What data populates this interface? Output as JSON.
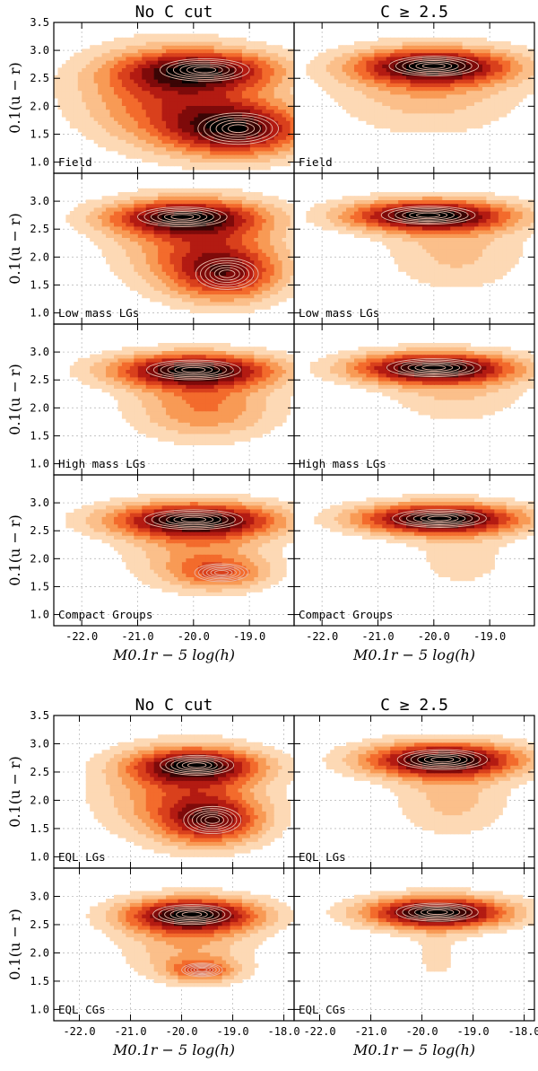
{
  "chart_data": {
    "type": "contour",
    "figure_blocks": [
      {
        "column_titles": [
          "No C cut",
          "C ≥ 2.5"
        ],
        "ylabel": "0.1(u − r)",
        "xlabel": "M0.1r − 5 log(h)",
        "xlim": [
          -22.5,
          -18.2
        ],
        "ylim": [
          0.8,
          3.5
        ],
        "xticks": [
          "-22.0",
          "-21.0",
          "-20.0",
          "-19.0"
        ],
        "yticks": [
          "1.0",
          "1.5",
          "2.0",
          "2.5",
          "3.0",
          "3.5"
        ],
        "rows": [
          {
            "label": "Field",
            "panels": [
              {
                "column": "No C cut",
                "peaks": [
                  {
                    "x": -19.2,
                    "y": 1.6,
                    "sx": 0.9,
                    "sy": 0.35,
                    "w": 1.0
                  },
                  {
                    "x": -19.8,
                    "y": 2.65,
                    "sx": 1.0,
                    "sy": 0.25,
                    "w": 0.85
                  }
                ],
                "band": {
                  "x": -20.5,
                  "y": 2.2,
                  "sx": 1.1,
                  "sy": 0.6,
                  "w": 0.6
                }
              },
              {
                "column": "C ≥ 2.5",
                "peaks": [
                  {
                    "x": -20.0,
                    "y": 2.72,
                    "sx": 1.0,
                    "sy": 0.22,
                    "w": 1.0
                  }
                ],
                "band": {
                  "x": -20.1,
                  "y": 2.3,
                  "sx": 1.2,
                  "sy": 0.55,
                  "w": 0.35
                }
              }
            ]
          },
          {
            "label": "Low mass LGs",
            "panels": [
              {
                "column": "No C cut",
                "peaks": [
                  {
                    "x": -20.2,
                    "y": 2.72,
                    "sx": 1.0,
                    "sy": 0.22,
                    "w": 1.0
                  },
                  {
                    "x": -19.4,
                    "y": 1.7,
                    "sx": 0.7,
                    "sy": 0.35,
                    "w": 0.75
                  }
                ],
                "band": {
                  "x": -19.9,
                  "y": 2.2,
                  "sx": 1.0,
                  "sy": 0.55,
                  "w": 0.6
                }
              },
              {
                "column": "C ≥ 2.5",
                "peaks": [
                  {
                    "x": -20.1,
                    "y": 2.75,
                    "sx": 1.05,
                    "sy": 0.2,
                    "w": 1.0
                  }
                ],
                "band": {
                  "x": -19.6,
                  "y": 2.1,
                  "sx": 0.9,
                  "sy": 0.5,
                  "w": 0.25
                }
              }
            ]
          },
          {
            "label": "High mass LGs",
            "panels": [
              {
                "column": "No C cut",
                "peaks": [
                  {
                    "x": -20.0,
                    "y": 2.68,
                    "sx": 1.05,
                    "sy": 0.22,
                    "w": 1.0
                  }
                ],
                "band": {
                  "x": -19.8,
                  "y": 2.0,
                  "sx": 0.9,
                  "sy": 0.4,
                  "w": 0.45
                }
              },
              {
                "column": "C ≥ 2.5",
                "peaks": [
                  {
                    "x": -20.0,
                    "y": 2.72,
                    "sx": 1.05,
                    "sy": 0.2,
                    "w": 1.0
                  }
                ],
                "band": {
                  "x": -19.6,
                  "y": 2.2,
                  "sx": 0.9,
                  "sy": 0.35,
                  "w": 0.2
                }
              }
            ]
          },
          {
            "label": "Compact Groups",
            "panels": [
              {
                "column": "No C cut",
                "peaks": [
                  {
                    "x": -20.0,
                    "y": 2.7,
                    "sx": 1.1,
                    "sy": 0.22,
                    "w": 1.0
                  },
                  {
                    "x": -19.5,
                    "y": 1.75,
                    "sx": 0.6,
                    "sy": 0.2,
                    "w": 0.4
                  }
                ],
                "band": {
                  "x": -19.9,
                  "y": 2.1,
                  "sx": 0.9,
                  "sy": 0.45,
                  "w": 0.35
                }
              },
              {
                "column": "C ≥ 2.5",
                "peaks": [
                  {
                    "x": -19.9,
                    "y": 2.72,
                    "sx": 1.05,
                    "sy": 0.2,
                    "w": 1.0
                  }
                ],
                "band": {
                  "x": -19.5,
                  "y": 2.0,
                  "sx": 0.7,
                  "sy": 0.45,
                  "w": 0.15
                }
              }
            ]
          }
        ]
      },
      {
        "column_titles": [
          "No C cut",
          "C ≥ 2.5"
        ],
        "ylabel": "0.1(u − r)",
        "xlabel": "M0.1r − 5 log(h)",
        "xlim": [
          -22.5,
          -17.8
        ],
        "ylim": [
          0.8,
          3.5
        ],
        "xticks": [
          "-22.0",
          "-21.0",
          "-20.0",
          "-19.0",
          "-18.0"
        ],
        "yticks": [
          "1.0",
          "1.5",
          "2.0",
          "2.5",
          "3.0",
          "3.5"
        ],
        "rows": [
          {
            "label": "EQL LGs",
            "panels": [
              {
                "column": "No C cut",
                "peaks": [
                  {
                    "x": -19.7,
                    "y": 2.62,
                    "sx": 0.9,
                    "sy": 0.22,
                    "w": 1.0
                  },
                  {
                    "x": -19.4,
                    "y": 1.65,
                    "sx": 0.7,
                    "sy": 0.3,
                    "w": 0.8
                  }
                ],
                "band": {
                  "x": -20.0,
                  "y": 2.1,
                  "sx": 1.1,
                  "sy": 0.55,
                  "w": 0.55
                }
              },
              {
                "column": "C ≥ 2.5",
                "peaks": [
                  {
                    "x": -19.6,
                    "y": 2.72,
                    "sx": 1.1,
                    "sy": 0.22,
                    "w": 1.0
                  }
                ],
                "band": {
                  "x": -19.4,
                  "y": 2.0,
                  "sx": 0.8,
                  "sy": 0.45,
                  "w": 0.25
                }
              }
            ]
          },
          {
            "label": "EQL CGs",
            "panels": [
              {
                "column": "No C cut",
                "peaks": [
                  {
                    "x": -19.8,
                    "y": 2.68,
                    "sx": 0.95,
                    "sy": 0.22,
                    "w": 1.0
                  },
                  {
                    "x": -19.6,
                    "y": 1.7,
                    "sx": 0.5,
                    "sy": 0.15,
                    "w": 0.45
                  }
                ],
                "band": {
                  "x": -19.9,
                  "y": 2.1,
                  "sx": 0.9,
                  "sy": 0.4,
                  "w": 0.3
                }
              },
              {
                "column": "C ≥ 2.5",
                "peaks": [
                  {
                    "x": -19.7,
                    "y": 2.72,
                    "sx": 1.0,
                    "sy": 0.2,
                    "w": 1.0
                  }
                ],
                "band": {
                  "x": -19.7,
                  "y": 1.9,
                  "sx": 0.5,
                  "sy": 0.45,
                  "w": 0.12
                }
              }
            ]
          }
        ]
      }
    ],
    "contour_fill_colors": [
      "#fdd9b5",
      "#fbbf8a",
      "#f89a55",
      "#f36b2c",
      "#d9401c",
      "#b31b12",
      "#7e0a0a",
      "#3a0505",
      "#000000"
    ],
    "contour_line_color": "#e8b6a6",
    "outer_line_color": "#f08060"
  }
}
